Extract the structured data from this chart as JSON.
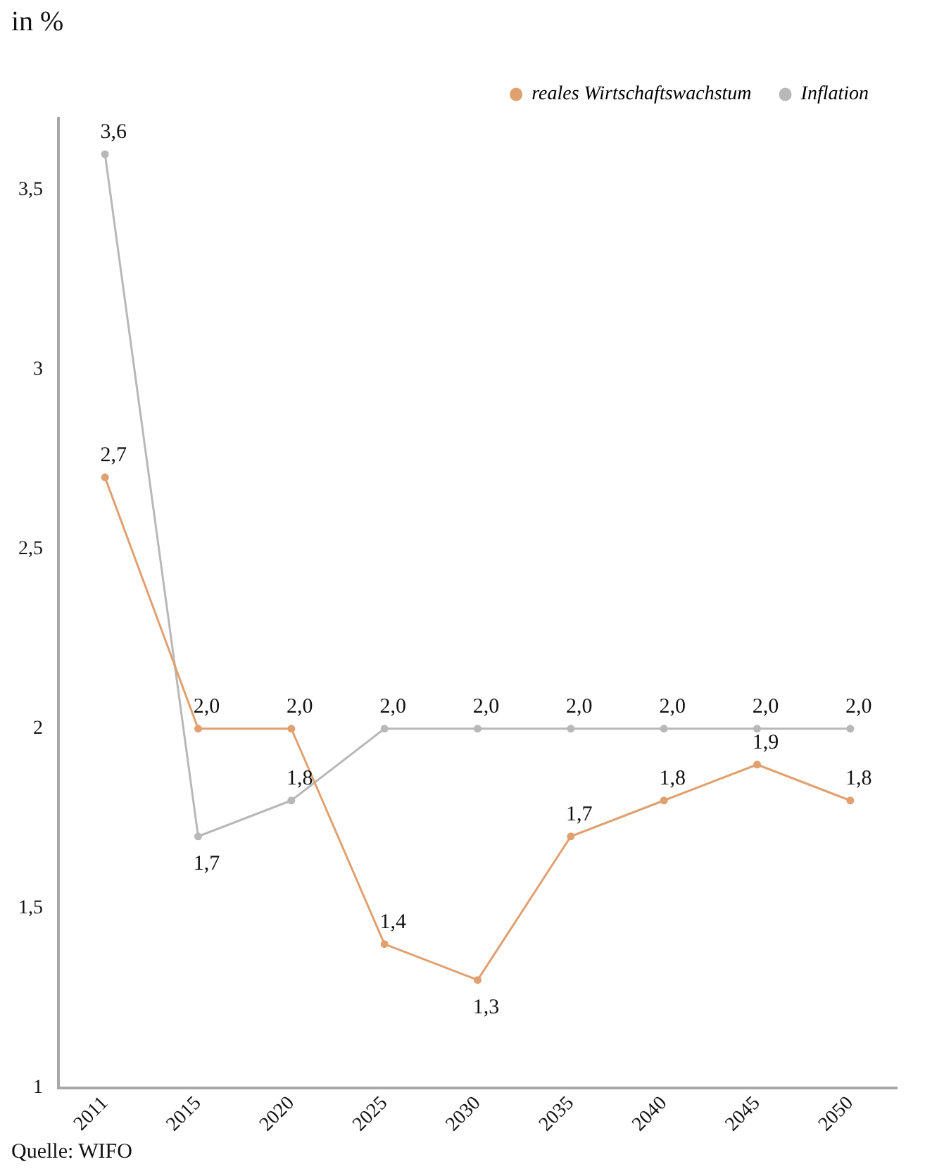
{
  "chart_data": {
    "type": "line",
    "ylabel": "in %",
    "annotations": [
      "Quelle: WIFO"
    ],
    "categories": [
      "2011",
      "2015",
      "2020",
      "2025",
      "2030",
      "2035",
      "2040",
      "2045",
      "2050"
    ],
    "series": [
      {
        "name": "reales Wirtschaftswachstum",
        "color": "#e0a070",
        "values": [
          2.7,
          2.0,
          2.0,
          1.4,
          1.3,
          1.7,
          1.8,
          1.9,
          1.8
        ],
        "value_labels": [
          "2,7",
          "2,0",
          "2,0",
          "1,4",
          "1,3",
          "1,7",
          "1,8",
          "1,9",
          "1,8"
        ]
      },
      {
        "name": "Inflation",
        "color": "#b8b8b8",
        "values": [
          3.6,
          1.7,
          1.8,
          2.0,
          2.0,
          2.0,
          2.0,
          2.0,
          2.0
        ],
        "value_labels": [
          "3,6",
          "1,7",
          "1,8",
          "2,0",
          "2,0",
          "2,0",
          "2,0",
          "2,0",
          "2,0"
        ]
      }
    ],
    "ylim": [
      1,
      3.7
    ],
    "yticks": [
      1,
      {
        "value": 1.5,
        "label": "1,5"
      },
      2,
      {
        "value": 2.5,
        "label": "2,5"
      },
      3,
      {
        "value": 3.5,
        "label": "3,5"
      }
    ],
    "grid": false,
    "legend": "top right",
    "marker": "circle",
    "line_style": "solid"
  }
}
